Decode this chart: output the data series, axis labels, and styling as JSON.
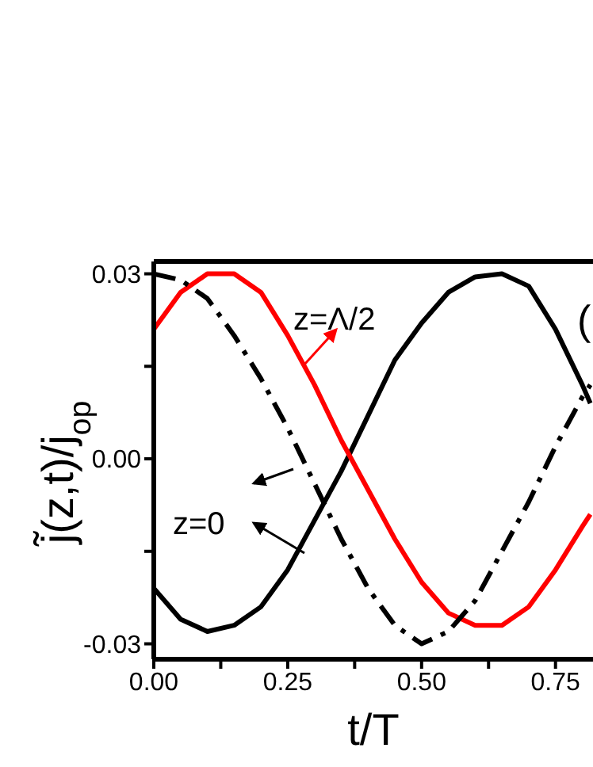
{
  "chart_data": {
    "type": "line",
    "xlabel": "t/T",
    "ylabel": "j̃(z,t)/j$_{op}$",
    "xlim": [
      0,
      0.82
    ],
    "ylim": [
      -0.0325,
      0.032
    ],
    "xticks": [
      {
        "value": 0,
        "label": "0.00"
      },
      {
        "value": 0.125,
        "label": null
      },
      {
        "value": 0.25,
        "label": "0.25"
      },
      {
        "value": 0.375,
        "label": null
      },
      {
        "value": 0.5,
        "label": "0.50"
      },
      {
        "value": 0.625,
        "label": null
      },
      {
        "value": 0.75,
        "label": "0.75"
      }
    ],
    "yticks": [
      {
        "value": -0.03,
        "label": "-0.03"
      },
      {
        "value": -0.015,
        "label": null
      },
      {
        "value": 0,
        "label": "0.00"
      },
      {
        "value": 0.015,
        "label": null
      },
      {
        "value": 0.03,
        "label": "0.03"
      }
    ],
    "grid": false,
    "legend": false,
    "marker": "none",
    "annotations": [
      "z=Λ/2",
      "z=0",
      "("
    ],
    "x": [
      0,
      0.05,
      0.1,
      0.15,
      0.2,
      0.25,
      0.3,
      0.35,
      0.4,
      0.45,
      0.5,
      0.55,
      0.6,
      0.65,
      0.7,
      0.75,
      0.8,
      0.815
    ],
    "series": [
      {
        "color": "#000000",
        "line_style": "solid",
        "values": [
          -0.021,
          -0.026,
          -0.028,
          -0.027,
          -0.024,
          -0.018,
          -0.01,
          -0.002,
          0.007,
          0.016,
          0.022,
          0.027,
          0.0295,
          0.03,
          0.028,
          0.021,
          0.012,
          0.009
        ]
      },
      {
        "color": "#ff0000",
        "line_style": "solid",
        "values": [
          0.021,
          0.027,
          0.03,
          0.03,
          0.027,
          0.02,
          0.012,
          0.003,
          -0.005,
          -0.013,
          -0.02,
          -0.025,
          -0.027,
          -0.027,
          -0.024,
          -0.018,
          -0.011,
          -0.009
        ]
      },
      {
        "color": "#000000",
        "line_style": "dashdot",
        "values": [
          0.03,
          0.029,
          0.026,
          0.02,
          0.013,
          0.005,
          -0.004,
          -0.013,
          -0.021,
          -0.027,
          -0.03,
          -0.028,
          -0.023,
          -0.015,
          -0.007,
          0.002,
          0.01,
          0.012
        ]
      }
    ]
  }
}
